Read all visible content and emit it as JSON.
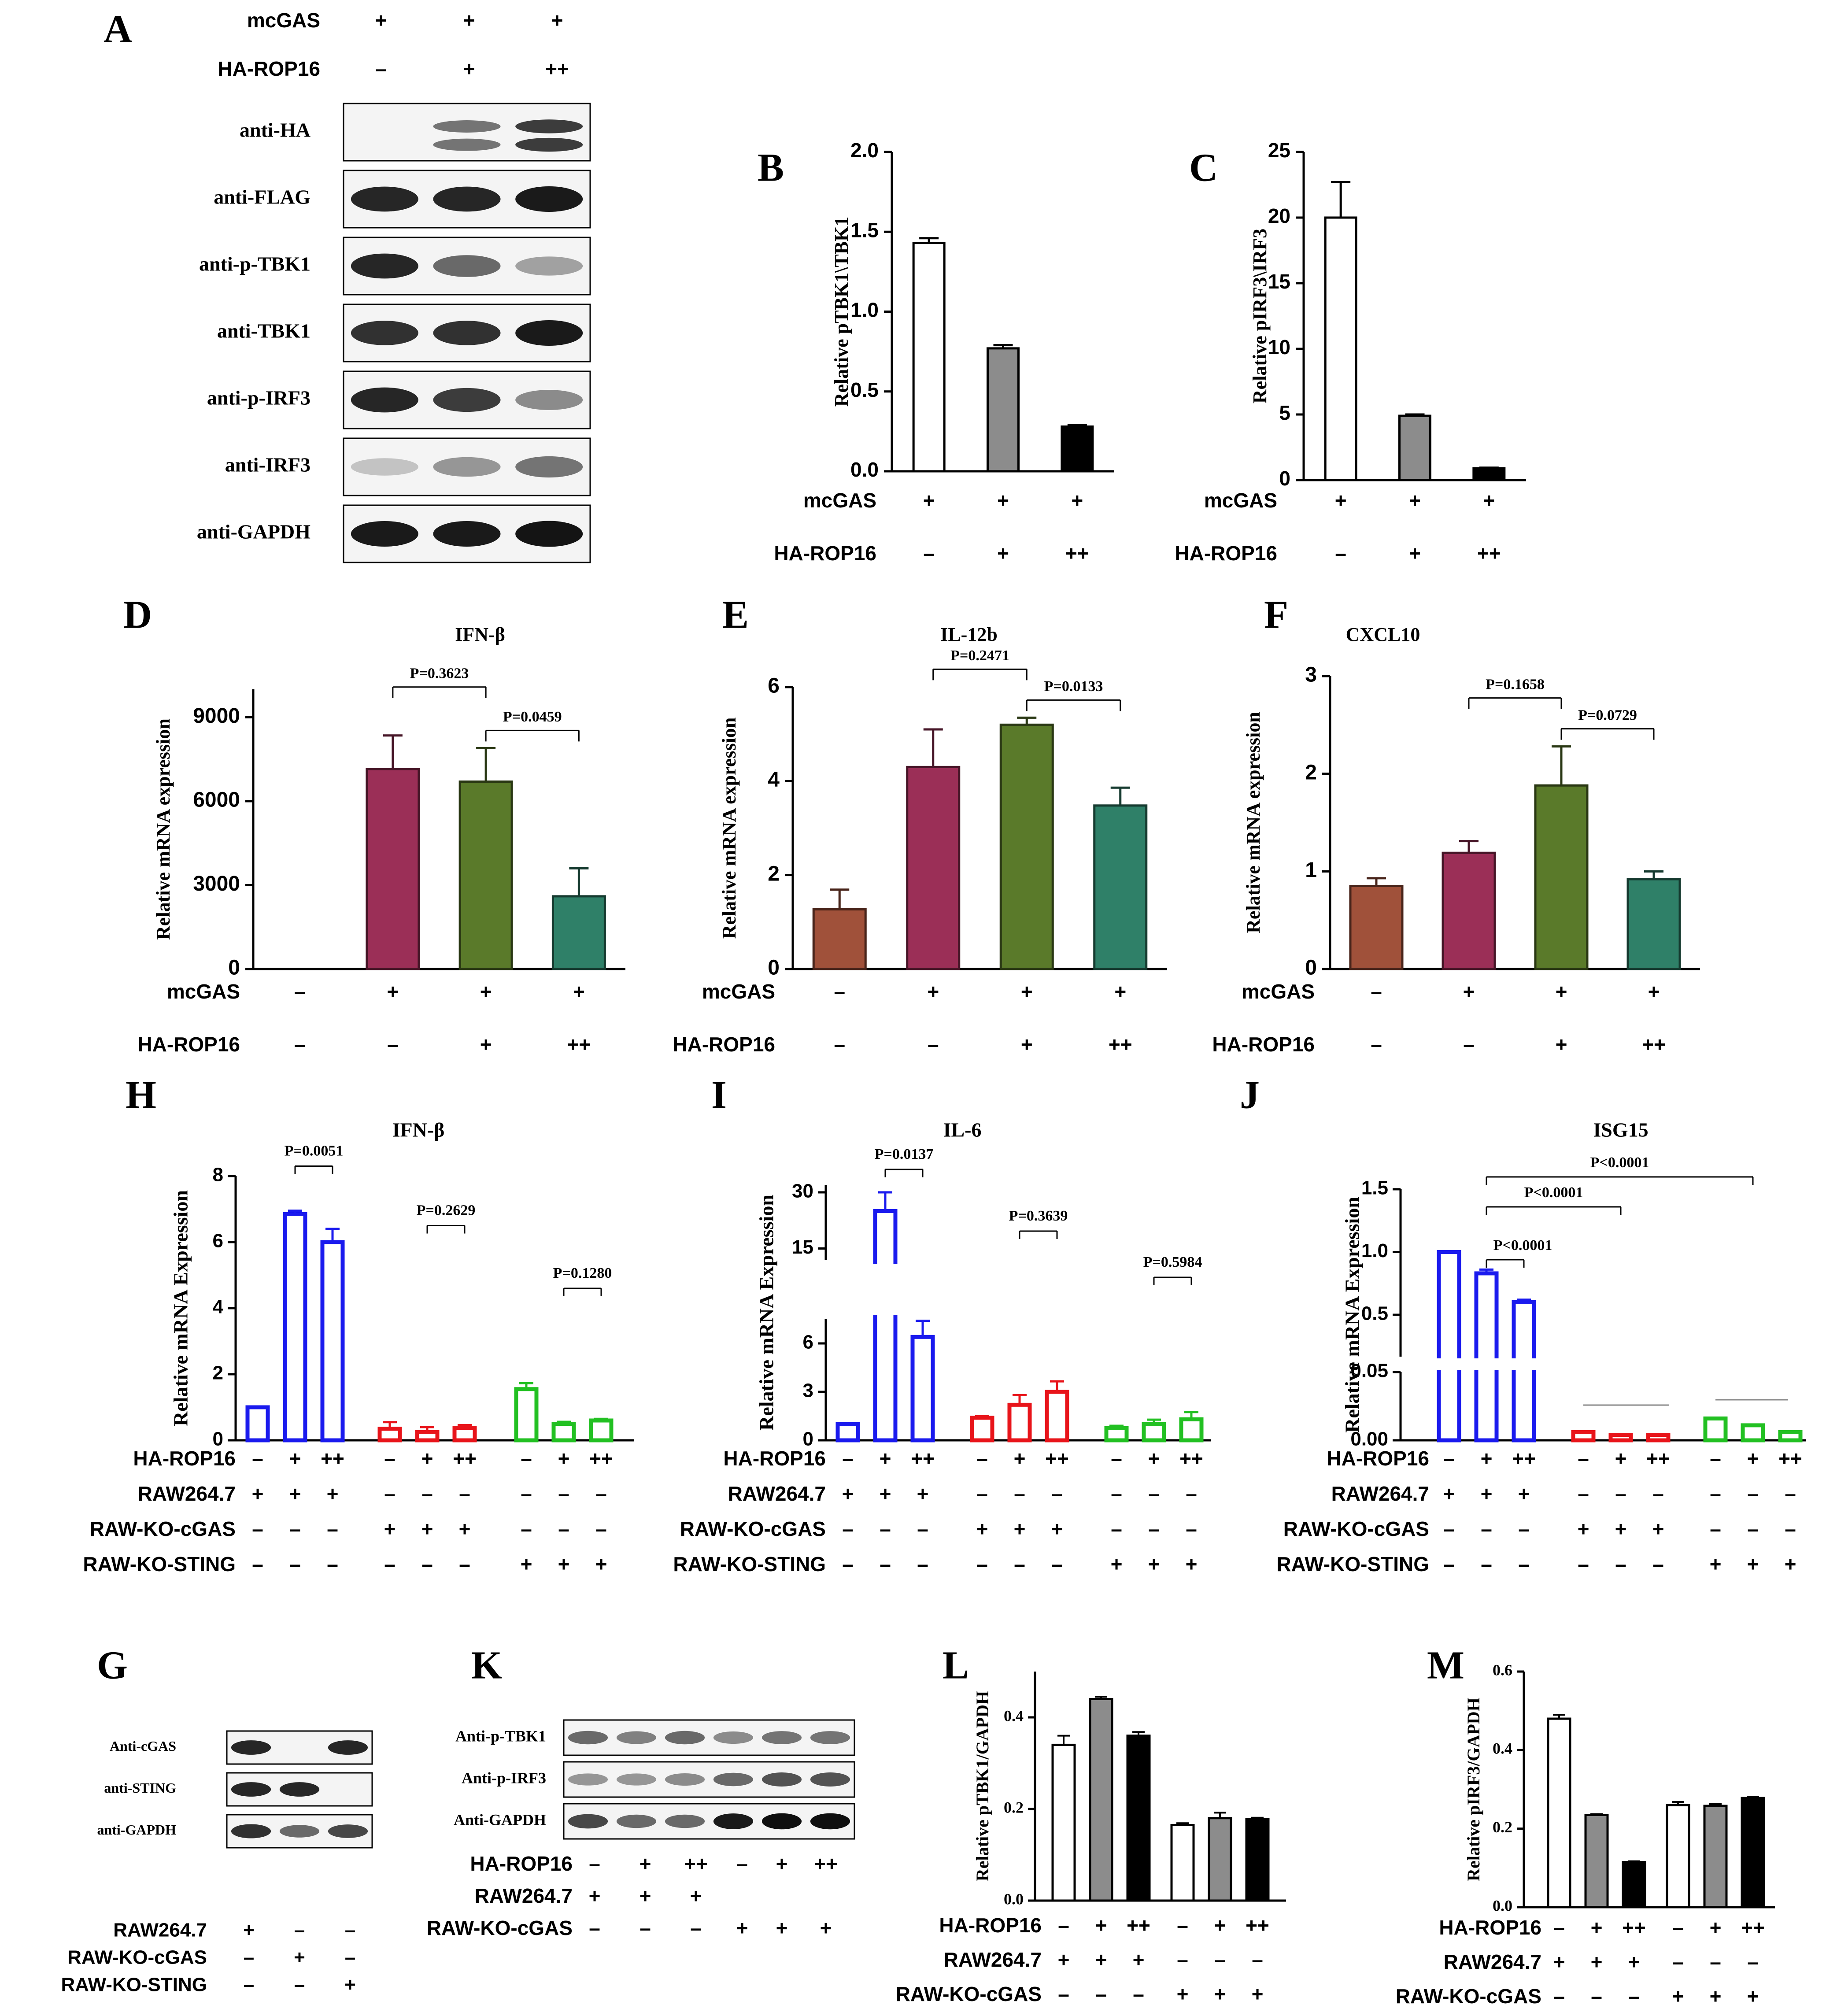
{
  "colors": {
    "white_bar": "#ffffff",
    "grey_bar": "#8c8c8c",
    "black_bar": "#000000",
    "brown": "#a0513a",
    "maroon": "#9b2f57",
    "olive": "#5a7a2a",
    "teal": "#2f8068",
    "blue": "#1a1aee",
    "red": "#e8141a",
    "green": "#22c022",
    "band_dark": "#141414",
    "band_light": "#d8d8d8"
  },
  "symbols": {
    "plus": "+",
    "minus": "–",
    "plusplus": "++"
  },
  "panels": [
    {
      "id": "A",
      "type": "western_blot",
      "letter": "A",
      "conditions": [
        {
          "label": "mcGAS",
          "values": [
            "+",
            "+",
            "+"
          ]
        },
        {
          "label": "HA-ROP16",
          "values": [
            "–",
            "+",
            "++"
          ]
        }
      ],
      "rows": [
        {
          "label": "anti-HA",
          "intensity": [
            0.0,
            0.55,
            0.8
          ],
          "doublet": true
        },
        {
          "label": "anti-FLAG",
          "intensity": [
            0.9,
            0.9,
            0.95
          ]
        },
        {
          "label": "anti-p-TBK1",
          "intensity": [
            0.9,
            0.6,
            0.35
          ]
        },
        {
          "label": "anti-TBK1",
          "intensity": [
            0.85,
            0.85,
            0.95
          ]
        },
        {
          "label": "anti-p-IRF3",
          "intensity": [
            0.9,
            0.8,
            0.45
          ]
        },
        {
          "label": "anti-IRF3",
          "intensity": [
            0.2,
            0.4,
            0.55
          ]
        },
        {
          "label": "anti-GAPDH",
          "intensity": [
            0.95,
            0.95,
            0.98
          ]
        }
      ]
    },
    {
      "id": "G",
      "type": "western_blot",
      "letter": "G",
      "rows": [
        {
          "label": "Anti-cGAS",
          "intensity": [
            0.9,
            0.0,
            0.9
          ]
        },
        {
          "label": "anti-STING",
          "intensity": [
            0.9,
            0.9,
            0.0
          ]
        },
        {
          "label": "anti-GAPDH",
          "intensity": [
            0.85,
            0.6,
            0.75
          ]
        }
      ],
      "conditions": [
        {
          "label": "RAW264.7",
          "values": [
            "+",
            "–",
            "–"
          ]
        },
        {
          "label": "RAW-KO-cGAS",
          "values": [
            "–",
            "+",
            "–"
          ]
        },
        {
          "label": "RAW-KO-STING",
          "values": [
            "–",
            "–",
            "+"
          ]
        }
      ]
    },
    {
      "id": "K",
      "type": "western_blot",
      "letter": "K",
      "rows": [
        {
          "label": "Anti-p-TBK1",
          "intensity": [
            0.6,
            0.5,
            0.6,
            0.45,
            0.55,
            0.55
          ]
        },
        {
          "label": "Anti-p-IRF3",
          "intensity": [
            0.4,
            0.4,
            0.45,
            0.6,
            0.7,
            0.7
          ]
        },
        {
          "label": "Anti-GAPDH",
          "intensity": [
            0.75,
            0.6,
            0.6,
            0.95,
            1.0,
            1.0
          ]
        }
      ],
      "conditions": [
        {
          "label": "HA-ROP16",
          "values": [
            "–",
            "+",
            "++",
            "–",
            "+",
            "++"
          ]
        },
        {
          "label": "RAW264.7",
          "values": [
            "+",
            "+",
            "+",
            "",
            "",
            ""
          ]
        },
        {
          "label": "RAW-KO-cGAS",
          "values": [
            "–",
            "–",
            "–",
            "+",
            "+",
            "+"
          ]
        }
      ]
    }
  ],
  "chart_data": [
    {
      "id": "B",
      "letter": "B",
      "type": "bar",
      "title": "",
      "ylabel": "Relative pTBK1\\TBK1",
      "ylim": [
        0,
        2.0
      ],
      "yticks": [
        0.0,
        0.5,
        1.0,
        1.5,
        2.0
      ],
      "tick_labels": [
        "0.0",
        "0.5",
        "1.0",
        "1.5",
        "2.0"
      ],
      "values": [
        1.43,
        0.77,
        0.28
      ],
      "errors": [
        0.03,
        0.02,
        0.01
      ],
      "colors": [
        "white_bar",
        "grey_bar",
        "black_bar"
      ],
      "conditions": [
        {
          "label": "mcGAS",
          "values": [
            "+",
            "+",
            "+"
          ]
        },
        {
          "label": "HA-ROP16",
          "values": [
            "–",
            "+",
            "++"
          ]
        }
      ]
    },
    {
      "id": "C",
      "letter": "C",
      "type": "bar",
      "title": "",
      "ylabel": "Relative pIRF3\\IRF3",
      "ylim": [
        0,
        25
      ],
      "yticks": [
        0,
        5,
        10,
        15,
        20,
        25
      ],
      "tick_labels": [
        "0",
        "5",
        "10",
        "15",
        "20",
        "25"
      ],
      "values": [
        20.0,
        4.9,
        0.9
      ],
      "errors": [
        2.7,
        0.1,
        0.05
      ],
      "colors": [
        "white_bar",
        "grey_bar",
        "black_bar"
      ],
      "conditions": [
        {
          "label": "mcGAS",
          "values": [
            "+",
            "+",
            "+"
          ]
        },
        {
          "label": "HA-ROP16",
          "values": [
            "–",
            "+",
            "++"
          ]
        }
      ]
    },
    {
      "id": "D",
      "letter": "D",
      "type": "bar",
      "title": "IFN-β",
      "ylabel": "Relative mRNA expression",
      "ylim": [
        0,
        10000
      ],
      "yticks": [
        0,
        3000,
        6000,
        9000
      ],
      "tick_labels": [
        "0",
        "3000",
        "6000",
        "9000"
      ],
      "values": [
        0,
        7150,
        6700,
        2600
      ],
      "errors": [
        0,
        1200,
        1200,
        1000
      ],
      "colors": [
        "brown",
        "maroon",
        "olive",
        "teal"
      ],
      "conditions": [
        {
          "label": "mcGAS",
          "values": [
            "–",
            "+",
            "+",
            "+"
          ]
        },
        {
          "label": "HA-ROP16",
          "values": [
            "–",
            "–",
            "+",
            "++"
          ]
        }
      ],
      "pvalues": [
        {
          "a": 1,
          "b": 2,
          "text": "P=0.3623",
          "level": 1
        },
        {
          "a": 2,
          "b": 3,
          "text": "P=0.0459",
          "level": 0
        }
      ]
    },
    {
      "id": "E",
      "letter": "E",
      "type": "bar",
      "title": "IL-12b",
      "ylabel": "Relative mRNA expression",
      "ylim": [
        0,
        6
      ],
      "yticks": [
        0,
        2,
        4,
        6
      ],
      "tick_labels": [
        "0",
        "2",
        "4",
        "6"
      ],
      "values": [
        1.27,
        4.3,
        5.2,
        3.48
      ],
      "errors": [
        0.42,
        0.8,
        0.15,
        0.38
      ],
      "colors": [
        "brown",
        "maroon",
        "olive",
        "teal"
      ],
      "conditions": [
        {
          "label": "mcGAS",
          "values": [
            "–",
            "+",
            "+",
            "+"
          ]
        },
        {
          "label": "HA-ROP16",
          "values": [
            "–",
            "–",
            "+",
            "++"
          ]
        }
      ],
      "pvalues": [
        {
          "a": 1,
          "b": 2,
          "text": "P=0.2471",
          "level": 1
        },
        {
          "a": 2,
          "b": 3,
          "text": "P=0.0133",
          "level": 0
        }
      ]
    },
    {
      "id": "F",
      "letter": "F",
      "type": "bar",
      "title": "CXCL10",
      "ylabel": "Relative mRNA expression",
      "ylim": [
        0,
        3
      ],
      "yticks": [
        0,
        1,
        2,
        3
      ],
      "tick_labels": [
        "0",
        "1",
        "2",
        "3"
      ],
      "values": [
        0.85,
        1.19,
        1.88,
        0.92
      ],
      "errors": [
        0.08,
        0.12,
        0.4,
        0.08
      ],
      "colors": [
        "brown",
        "maroon",
        "olive",
        "teal"
      ],
      "conditions": [
        {
          "label": "mcGAS",
          "values": [
            "–",
            "+",
            "+",
            "+"
          ]
        },
        {
          "label": "HA-ROP16",
          "values": [
            "–",
            "–",
            "+",
            "++"
          ]
        }
      ],
      "pvalues": [
        {
          "a": 1,
          "b": 2,
          "text": "P=0.1658",
          "level": 1
        },
        {
          "a": 2,
          "b": 3,
          "text": "P=0.0729",
          "level": 0
        }
      ]
    },
    {
      "id": "H",
      "letter": "H",
      "type": "bar",
      "title": "IFN-β",
      "ylabel": "Relative mRNA Expression",
      "ylim": [
        0,
        8
      ],
      "yticks": [
        0,
        2,
        4,
        6,
        8
      ],
      "tick_labels": [
        "0",
        "2",
        "4",
        "6",
        "8"
      ],
      "groups": [
        {
          "color": "blue",
          "values": [
            1.0,
            6.85,
            6.0
          ],
          "errors": [
            0,
            0.1,
            0.4
          ]
        },
        {
          "color": "red",
          "values": [
            0.35,
            0.25,
            0.38
          ],
          "errors": [
            0.2,
            0.15,
            0.08
          ]
        },
        {
          "color": "green",
          "values": [
            1.55,
            0.5,
            0.6
          ],
          "errors": [
            0.18,
            0.06,
            0.05
          ]
        }
      ],
      "conditions": [
        {
          "label": "HA-ROP16",
          "values": [
            "–",
            "+",
            "++",
            "–",
            "+",
            "++",
            "–",
            "+",
            "++"
          ]
        },
        {
          "label": "RAW264.7",
          "values": [
            "+",
            "+",
            "+",
            "–",
            "–",
            "–",
            "–",
            "–",
            "–"
          ]
        },
        {
          "label": "RAW-KO-cGAS",
          "values": [
            "–",
            "–",
            "–",
            "+",
            "+",
            "+",
            "–",
            "–",
            "–"
          ]
        },
        {
          "label": "RAW-KO-STING",
          "values": [
            "–",
            "–",
            "–",
            "–",
            "–",
            "–",
            "+",
            "+",
            "+"
          ]
        }
      ],
      "pvalues": [
        {
          "a": 1,
          "b": 2,
          "text": "P=0.0051",
          "y": 8.3
        },
        {
          "a": 4,
          "b": 5,
          "text": "P=0.2629",
          "y": 6.5
        },
        {
          "a": 7,
          "b": 8,
          "text": "P=0.1280",
          "y": 4.6
        }
      ]
    },
    {
      "id": "I",
      "letter": "I",
      "type": "bar",
      "title": "IL-6",
      "ylabel": "Relative mRNA Expression",
      "broken_axis": true,
      "ylim_lower": [
        0,
        7.5
      ],
      "ylim_upper": [
        12,
        32
      ],
      "tick_labels": [
        "0",
        "3",
        "6",
        "15",
        "30"
      ],
      "groups": [
        {
          "color": "blue",
          "values": [
            1.0,
            25.0,
            6.4
          ],
          "errors": [
            0,
            5,
            1.0
          ]
        },
        {
          "color": "red",
          "values": [
            1.4,
            2.2,
            3.0
          ],
          "errors": [
            0.1,
            0.6,
            0.65
          ]
        },
        {
          "color": "green",
          "values": [
            0.75,
            1.0,
            1.3
          ],
          "errors": [
            0.15,
            0.28,
            0.45
          ]
        }
      ],
      "conditions": [
        {
          "label": "HA-ROP16",
          "values": [
            "–",
            "+",
            "++",
            "–",
            "+",
            "++",
            "–",
            "+",
            "++"
          ]
        },
        {
          "label": "RAW264.7",
          "values": [
            "+",
            "+",
            "+",
            "–",
            "–",
            "–",
            "–",
            "–",
            "–"
          ]
        },
        {
          "label": "RAW-KO-cGAS",
          "values": [
            "–",
            "–",
            "–",
            "+",
            "+",
            "+",
            "–",
            "–",
            "–"
          ]
        },
        {
          "label": "RAW-KO-STING",
          "values": [
            "–",
            "–",
            "–",
            "–",
            "–",
            "–",
            "+",
            "+",
            "+"
          ]
        }
      ],
      "pvalues": [
        {
          "a": 1,
          "b": 2,
          "text": "P=0.0137"
        },
        {
          "a": 4,
          "b": 5,
          "text": "P=0.3639"
        },
        {
          "a": 7,
          "b": 8,
          "text": "P=0.5984"
        }
      ]
    },
    {
      "id": "J",
      "letter": "J",
      "type": "bar",
      "title": "ISG15",
      "ylabel": "Relative mRNA Expression",
      "broken_axis": true,
      "ylim_lower": [
        0,
        0.05
      ],
      "ylim_upper": [
        0.05,
        1.5
      ],
      "tick_labels": [
        "0.00",
        "0.05",
        "0.5",
        "1.0",
        "1.5"
      ],
      "groups": [
        {
          "color": "blue",
          "values": [
            1.0,
            0.83,
            0.6
          ],
          "errors": [
            0,
            0.03,
            0.02
          ]
        },
        {
          "color": "red",
          "values": [
            0.006,
            0.004,
            0.004
          ],
          "errors": [
            0.001,
            0.001,
            0.001
          ]
        },
        {
          "color": "green",
          "values": [
            0.016,
            0.011,
            0.006
          ],
          "errors": [
            0.002,
            0.001,
            0.001
          ]
        }
      ],
      "conditions": [
        {
          "label": "HA-ROP16",
          "values": [
            "–",
            "+",
            "++",
            "–",
            "+",
            "++",
            "–",
            "+",
            "++"
          ]
        },
        {
          "label": "RAW264.7",
          "values": [
            "+",
            "+",
            "+",
            "–",
            "–",
            "–",
            "–",
            "–",
            "–"
          ]
        },
        {
          "label": "RAW-KO-cGAS",
          "values": [
            "–",
            "–",
            "–",
            "+",
            "+",
            "+",
            "–",
            "–",
            "–"
          ]
        },
        {
          "label": "RAW-KO-STING",
          "values": [
            "–",
            "–",
            "–",
            "–",
            "–",
            "–",
            "+",
            "+",
            "+"
          ]
        }
      ],
      "pvalues": [
        {
          "a": 1,
          "b": 2,
          "text": "P<0.0001"
        },
        {
          "a": 1,
          "b": 4,
          "text": "P<0.0001"
        },
        {
          "a": 1,
          "b": 7,
          "text": "P<0.0001"
        }
      ]
    },
    {
      "id": "L",
      "letter": "L",
      "type": "bar",
      "title": "",
      "ylabel": "Relative pTBK1/GAPDH",
      "ylim": [
        0,
        0.5
      ],
      "yticks": [
        0.0,
        0.2,
        0.4
      ],
      "tick_labels": [
        "0.0",
        "0.2",
        "0.4"
      ],
      "groups": [
        {
          "values": [
            0.34,
            0.44,
            0.36
          ],
          "errors": [
            0.02,
            0.005,
            0.008
          ],
          "colors": [
            "white_bar",
            "grey_bar",
            "black_bar"
          ]
        },
        {
          "values": [
            0.165,
            0.18,
            0.178
          ],
          "errors": [
            0.004,
            0.012,
            0.003
          ],
          "colors": [
            "white_bar",
            "grey_bar",
            "black_bar"
          ]
        }
      ],
      "conditions": [
        {
          "label": "HA-ROP16",
          "values": [
            "–",
            "+",
            "++",
            "–",
            "+",
            "++"
          ]
        },
        {
          "label": "RAW264.7",
          "values": [
            "+",
            "+",
            "+",
            "–",
            "–",
            "–"
          ]
        },
        {
          "label": "RAW-KO-cGAS",
          "values": [
            "–",
            "–",
            "–",
            "+",
            "+",
            "+"
          ]
        }
      ]
    },
    {
      "id": "M",
      "letter": "M",
      "type": "bar",
      "title": "",
      "ylabel": "Relative pIRF3/GAPDH",
      "ylim": [
        0,
        0.6
      ],
      "yticks": [
        0.0,
        0.2,
        0.4,
        0.6
      ],
      "tick_labels": [
        "0.0",
        "0.2",
        "0.4",
        "0.6"
      ],
      "groups": [
        {
          "values": [
            0.48,
            0.235,
            0.115
          ],
          "errors": [
            0.01,
            0.002,
            0.002
          ],
          "colors": [
            "white_bar",
            "grey_bar",
            "black_bar"
          ]
        },
        {
          "values": [
            0.26,
            0.258,
            0.278
          ],
          "errors": [
            0.008,
            0.005,
            0.003
          ],
          "colors": [
            "white_bar",
            "grey_bar",
            "black_bar"
          ]
        }
      ],
      "conditions": [
        {
          "label": "HA-ROP16",
          "values": [
            "–",
            "+",
            "++",
            "–",
            "+",
            "++"
          ]
        },
        {
          "label": "RAW264.7",
          "values": [
            "+",
            "+",
            "+",
            "–",
            "–",
            "–"
          ]
        },
        {
          "label": "RAW-KO-cGAS",
          "values": [
            "–",
            "–",
            "–",
            "+",
            "+",
            "+"
          ]
        }
      ]
    }
  ]
}
